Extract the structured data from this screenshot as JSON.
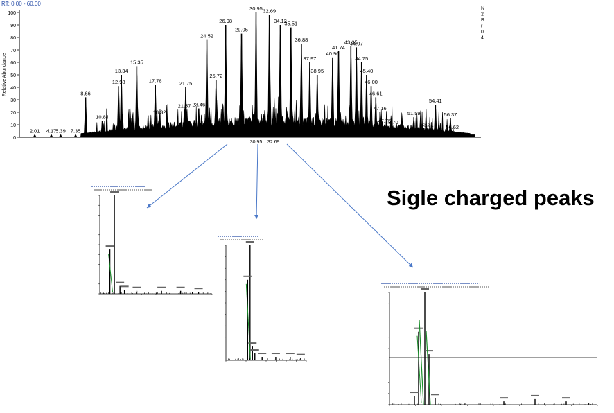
{
  "header": {
    "rt_label": "RT: 0.00 - 60.00"
  },
  "side_letters": [
    "N",
    "2",
    "B",
    "r",
    "0",
    "4"
  ],
  "annotation": {
    "text": "Sigle charged peaks"
  },
  "chart_data": {
    "type": "line",
    "title": "",
    "xlabel": "",
    "ylabel": "Relative Abundance",
    "xlim": [
      0,
      60
    ],
    "ylim": [
      0,
      100
    ],
    "y_ticks": [
      0,
      10,
      20,
      30,
      40,
      50,
      60,
      70,
      80,
      90,
      100
    ],
    "grid": false,
    "peaks": [
      {
        "x": 2.01,
        "y": 2
      },
      {
        "x": 4.17,
        "y": 2
      },
      {
        "x": 5.39,
        "y": 2
      },
      {
        "x": 7.35,
        "y": 2
      },
      {
        "x": 8.66,
        "y": 32
      },
      {
        "x": 10.84,
        "y": 13
      },
      {
        "x": 12.98,
        "y": 41
      },
      {
        "x": 13.34,
        "y": 50
      },
      {
        "x": 15.35,
        "y": 57
      },
      {
        "x": 17.78,
        "y": 42
      },
      {
        "x": 18.32,
        "y": 17
      },
      {
        "x": 21.57,
        "y": 22
      },
      {
        "x": 21.75,
        "y": 40
      },
      {
        "x": 23.46,
        "y": 23
      },
      {
        "x": 24.52,
        "y": 78
      },
      {
        "x": 25.72,
        "y": 46
      },
      {
        "x": 26.98,
        "y": 90
      },
      {
        "x": 29.05,
        "y": 83
      },
      {
        "x": 30.95,
        "y": 100
      },
      {
        "x": 32.69,
        "y": 98
      },
      {
        "x": 34.12,
        "y": 90
      },
      {
        "x": 35.51,
        "y": 88
      },
      {
        "x": 36.88,
        "y": 75
      },
      {
        "x": 37.97,
        "y": 60
      },
      {
        "x": 38.95,
        "y": 50
      },
      {
        "x": 40.96,
        "y": 64
      },
      {
        "x": 41.74,
        "y": 69
      },
      {
        "x": 43.35,
        "y": 73
      },
      {
        "x": 44.07,
        "y": 72
      },
      {
        "x": 44.75,
        "y": 60
      },
      {
        "x": 45.4,
        "y": 50
      },
      {
        "x": 46.0,
        "y": 41
      },
      {
        "x": 46.61,
        "y": 32
      },
      {
        "x": 47.16,
        "y": 20
      },
      {
        "x": 47.75,
        "y": 10
      },
      {
        "x": 48.7,
        "y": 9
      },
      {
        "x": 51.59,
        "y": 16
      },
      {
        "x": 53.31,
        "y": 7
      },
      {
        "x": 54.41,
        "y": 26
      },
      {
        "x": 56.37,
        "y": 15
      },
      {
        "x": 56.62,
        "y": 5
      }
    ],
    "peak_labels": [
      "2.01",
      "4.17",
      "5.39",
      "7.35",
      "8.66",
      "10.84",
      "12.98",
      "13.34",
      "15.35",
      "17.78",
      "18.32",
      "21.57",
      "21.75",
      "23.46",
      "24.52",
      "25.72",
      "26.98",
      "29.05",
      "30.95",
      "32.69",
      "34.12",
      "35.51",
      "36.88",
      "37.97",
      "38.95",
      "40.96",
      "41.74",
      "43.35",
      "44.07",
      "44.75",
      "45.40",
      "46.00",
      "46.61",
      "47.16",
      "47.75",
      "48.70",
      "51.59",
      "53.31",
      "54.41",
      "56.37",
      "56.62"
    ],
    "x_axis_labels": [
      "30.95",
      "32.69"
    ],
    "colors": {
      "trace": "#000000",
      "arrow": "#4a78c8",
      "rt_text": "#2a4fa8",
      "green_peak": "#1a8f2a"
    }
  },
  "insets": [
    {
      "name": "spectrum-1",
      "peaks": [
        {
          "x": 0.13,
          "y": 100
        },
        {
          "x": 0.09,
          "y": 45
        },
        {
          "x": 0.18,
          "y": 8
        },
        {
          "x": 0.22,
          "y": 4
        },
        {
          "x": 0.33,
          "y": 3
        },
        {
          "x": 0.55,
          "y": 3
        },
        {
          "x": 0.72,
          "y": 3
        },
        {
          "x": 0.88,
          "y": 2
        }
      ]
    },
    {
      "name": "spectrum-2",
      "peaks": [
        {
          "x": 0.3,
          "y": 100
        },
        {
          "x": 0.27,
          "y": 70
        },
        {
          "x": 0.33,
          "y": 12
        },
        {
          "x": 0.36,
          "y": 6
        },
        {
          "x": 0.45,
          "y": 3
        },
        {
          "x": 0.62,
          "y": 3
        },
        {
          "x": 0.8,
          "y": 3
        },
        {
          "x": 0.93,
          "y": 2
        }
      ]
    },
    {
      "name": "spectrum-3",
      "peaks": [
        {
          "x": 0.17,
          "y": 100
        },
        {
          "x": 0.14,
          "y": 65
        },
        {
          "x": 0.19,
          "y": 45
        },
        {
          "x": 0.12,
          "y": 8
        },
        {
          "x": 0.22,
          "y": 6
        },
        {
          "x": 0.55,
          "y": 3
        },
        {
          "x": 0.7,
          "y": 5
        },
        {
          "x": 0.85,
          "y": 3
        }
      ]
    }
  ]
}
